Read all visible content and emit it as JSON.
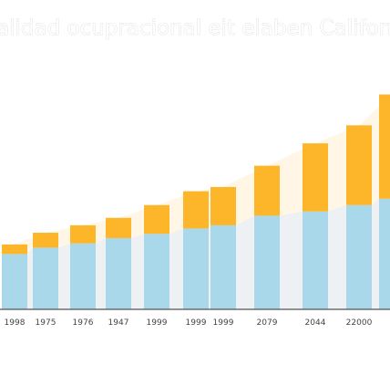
{
  "chart_data": {
    "type": "bar",
    "stacked": true,
    "title": "alidad ocupracional eit elaben Californi",
    "xlabel": "",
    "ylabel": "",
    "categories": [
      "1998",
      "1975",
      "1976",
      "1947",
      "1999",
      "1999",
      "1999",
      "2079",
      "2044",
      "22000",
      ""
    ],
    "series": [
      {
        "values": [
          52,
          58,
          62,
          67,
          71,
          76,
          79,
          88,
          92,
          98,
          104
        ]
      },
      {
        "values": [
          9,
          14,
          17,
          19,
          27,
          35,
          36,
          47,
          64,
          75,
          98
        ]
      }
    ],
    "ylim": [
      0,
      205
    ],
    "grid": false,
    "legend": "none",
    "colors": {
      "bottom": "#a9d8ea",
      "top": "#fdb52a",
      "band_light": "#eef1f3",
      "area": "#fff4e0",
      "axis": "#555555"
    }
  }
}
